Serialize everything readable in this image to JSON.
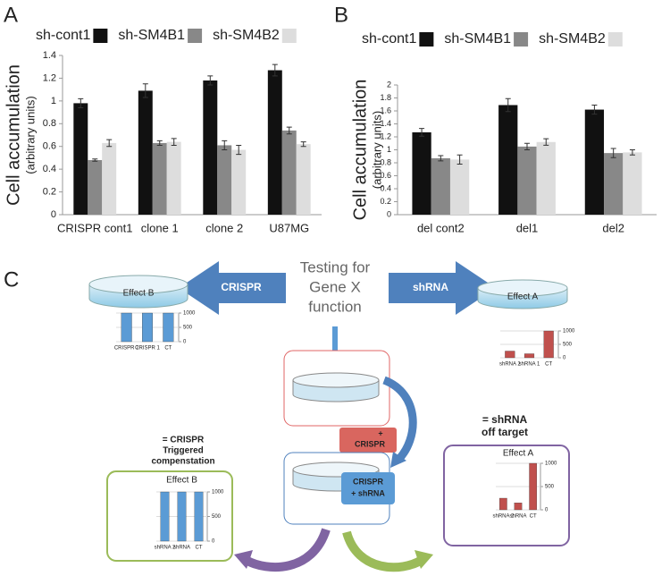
{
  "chart_data": [
    {
      "type": "bar",
      "panel": "A",
      "ylabel": "Cell accumulation",
      "ylabel_sub": "(arbitrary units)",
      "categories": [
        "CRISPR cont1",
        "clone 1",
        "clone 2",
        "U87MG"
      ],
      "series": [
        {
          "name": "sh-cont1",
          "color": "#111111",
          "values": [
            0.98,
            1.09,
            1.18,
            1.27
          ],
          "errors": [
            0.04,
            0.06,
            0.04,
            0.05
          ]
        },
        {
          "name": "sh-SM4B1",
          "color": "#888888",
          "values": [
            0.48,
            0.63,
            0.61,
            0.74
          ],
          "errors": [
            0.01,
            0.02,
            0.04,
            0.03
          ]
        },
        {
          "name": "sh-SM4B2",
          "color": "#dddddd",
          "values": [
            0.63,
            0.64,
            0.57,
            0.62
          ],
          "errors": [
            0.03,
            0.03,
            0.04,
            0.02
          ]
        }
      ],
      "ylim": [
        0,
        1.4
      ],
      "yticks": [
        0,
        0.2,
        0.4,
        0.6,
        0.8,
        1,
        1.2,
        1.4
      ]
    },
    {
      "type": "bar",
      "panel": "B",
      "ylabel": "Cell accumulation",
      "ylabel_sub": "(arbitrary units)",
      "categories": [
        "del cont2",
        "del1",
        "del2"
      ],
      "series": [
        {
          "name": "sh-cont1",
          "color": "#111111",
          "values": [
            1.27,
            1.69,
            1.62
          ],
          "errors": [
            0.06,
            0.1,
            0.07
          ]
        },
        {
          "name": "sh-SM4B1",
          "color": "#888888",
          "values": [
            0.87,
            1.05,
            0.95
          ],
          "errors": [
            0.04,
            0.05,
            0.07
          ]
        },
        {
          "name": "sh-SM4B2",
          "color": "#dddddd",
          "values": [
            0.85,
            1.12,
            0.96
          ],
          "errors": [
            0.07,
            0.05,
            0.04
          ]
        }
      ],
      "ylim": [
        0,
        2
      ],
      "yticks": [
        0,
        0.2,
        0.4,
        0.6,
        0.8,
        1,
        1.2,
        1.4,
        1.6,
        1.8,
        2
      ]
    },
    {
      "type": "bar",
      "categories": [
        "CRISPR 2",
        "CRISPR 1",
        "CT"
      ],
      "values": [
        1000,
        1000,
        1000
      ],
      "color": "#5b9bd5",
      "ylim": [
        0,
        1000
      ],
      "yticks": [
        0,
        500,
        1000
      ]
    },
    {
      "type": "bar",
      "categories": [
        "shRNA 2",
        "shRNA 1",
        "CT"
      ],
      "values": [
        250,
        150,
        1000
      ],
      "color": "#c0504d",
      "ylim": [
        0,
        1000
      ],
      "yticks": [
        0,
        500,
        1000
      ]
    },
    {
      "type": "bar",
      "title": "Effect B",
      "categories": [
        "shRNA 2",
        "shRNA",
        "CT"
      ],
      "values": [
        1000,
        1000,
        1000
      ],
      "color": "#5b9bd5",
      "ylim": [
        0,
        1000
      ],
      "yticks": [
        0,
        500,
        1000
      ]
    },
    {
      "type": "bar",
      "title": "Effect A",
      "categories": [
        "shRNA 2",
        "shRNA",
        "CT"
      ],
      "values": [
        250,
        150,
        1000
      ],
      "color": "#c0504d",
      "ylim": [
        0,
        1000
      ],
      "yticks": [
        0,
        500,
        1000
      ]
    }
  ],
  "diagram": {
    "panel": "C",
    "center": [
      "Testing for",
      "Gene X",
      "function"
    ],
    "left_arrow": "CRISPR",
    "right_arrow": "shRNA",
    "left_dish": "Effect B",
    "right_dish": "Effect A",
    "plus_crispr": [
      "+",
      "CRISPR"
    ],
    "crispr_shrna": [
      "CRISPR",
      "+ shRNA"
    ],
    "left_note": [
      "= CRISPR",
      "Triggered",
      "compenstation"
    ],
    "right_note": [
      "= shRNA",
      "off target"
    ]
  }
}
